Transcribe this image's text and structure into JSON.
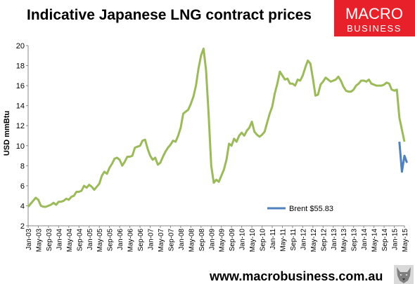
{
  "header": {
    "title": "Indicative Japanese LNG contract prices"
  },
  "logo": {
    "line1": "MACRO",
    "line2": "BUSINESS",
    "color": "#e8202a"
  },
  "footer": {
    "url": "www.macrobusiness.com.au"
  },
  "chart_data": {
    "type": "line",
    "title": "Indicative Japanese LNG contract prices",
    "ylabel": "USD mmBtu",
    "xlabel": "",
    "ylim": [
      2,
      20
    ],
    "yticks": [
      2,
      4,
      6,
      8,
      10,
      12,
      14,
      16,
      18,
      20
    ],
    "grid": false,
    "legend": "bottom-right",
    "xticks": [
      "Jan-03",
      "May-03",
      "Sep-03",
      "Jan-04",
      "May-04",
      "Sep-04",
      "Jan-05",
      "May-05",
      "Sep-05",
      "Jan-06",
      "May-06",
      "Sep-06",
      "Jan-07",
      "May-07",
      "Sep-07",
      "Jan-08",
      "May-08",
      "Sep-08",
      "Jan-09",
      "May-09",
      "Sep-09",
      "Jan-10",
      "May-10",
      "Sep-10",
      "Jan-11",
      "May-11",
      "Sep-11",
      "Jan-12",
      "May-12",
      "Sep-12",
      "Jan-13",
      "May-13",
      "Sep-13",
      "Jan-14",
      "May-14",
      "Sep-14",
      "Jan-15",
      "May-15"
    ],
    "x_start": "Jan-03",
    "series": [
      {
        "color": "#9bbb59",
        "values": [
          3.9,
          4.2,
          4.5,
          4.8,
          4.6,
          4.0,
          3.9,
          3.9,
          4.0,
          4.1,
          4.3,
          4.1,
          4.4,
          4.4,
          4.5,
          4.7,
          4.6,
          4.9,
          5.0,
          5.4,
          5.4,
          5.5,
          6.0,
          5.8,
          6.1,
          5.9,
          5.6,
          5.9,
          6.2,
          7.0,
          7.4,
          7.2,
          7.8,
          8.2,
          8.7,
          8.8,
          8.6,
          8.0,
          8.4,
          8.9,
          8.9,
          9.0,
          9.8,
          9.9,
          10.0,
          10.5,
          10.6,
          9.7,
          9.0,
          8.6,
          8.8,
          8.1,
          8.3,
          8.9,
          9.4,
          9.8,
          10.1,
          10.5,
          10.4,
          11.0,
          11.8,
          13.2,
          13.4,
          13.6,
          14.2,
          14.9,
          16.0,
          17.7,
          19.0,
          19.7,
          17.5,
          13.0,
          8.0,
          6.3,
          6.6,
          6.4,
          7.0,
          7.6,
          8.6,
          10.2,
          10.0,
          10.7,
          10.4,
          11.0,
          11.3,
          11.0,
          11.5,
          11.8,
          12.4,
          11.4,
          11.1,
          10.9,
          11.1,
          11.4,
          12.3,
          13.2,
          13.9,
          15.2,
          16.2,
          17.4,
          17.0,
          16.6,
          16.7,
          16.2,
          16.2,
          16.0,
          16.6,
          16.5,
          17.0,
          17.8,
          18.5,
          18.2,
          16.7,
          15.0,
          15.1,
          16.1,
          16.4,
          16.8,
          16.6,
          16.4,
          16.5,
          16.6,
          16.9,
          16.5,
          15.9,
          15.5,
          15.4,
          15.4,
          15.6,
          16.0,
          16.2,
          16.5,
          16.5,
          16.4,
          16.6,
          16.2,
          16.1,
          16.0,
          16.0,
          16.0,
          16.1,
          16.3,
          16.2,
          15.6,
          15.5,
          15.6,
          12.8,
          11.6,
          10.4
        ]
      },
      {
        "name": "Brent $55.83",
        "color": "#4f81bd",
        "start_index": 146,
        "values": [
          10.4,
          7.4,
          9.0,
          8.3
        ]
      }
    ]
  }
}
